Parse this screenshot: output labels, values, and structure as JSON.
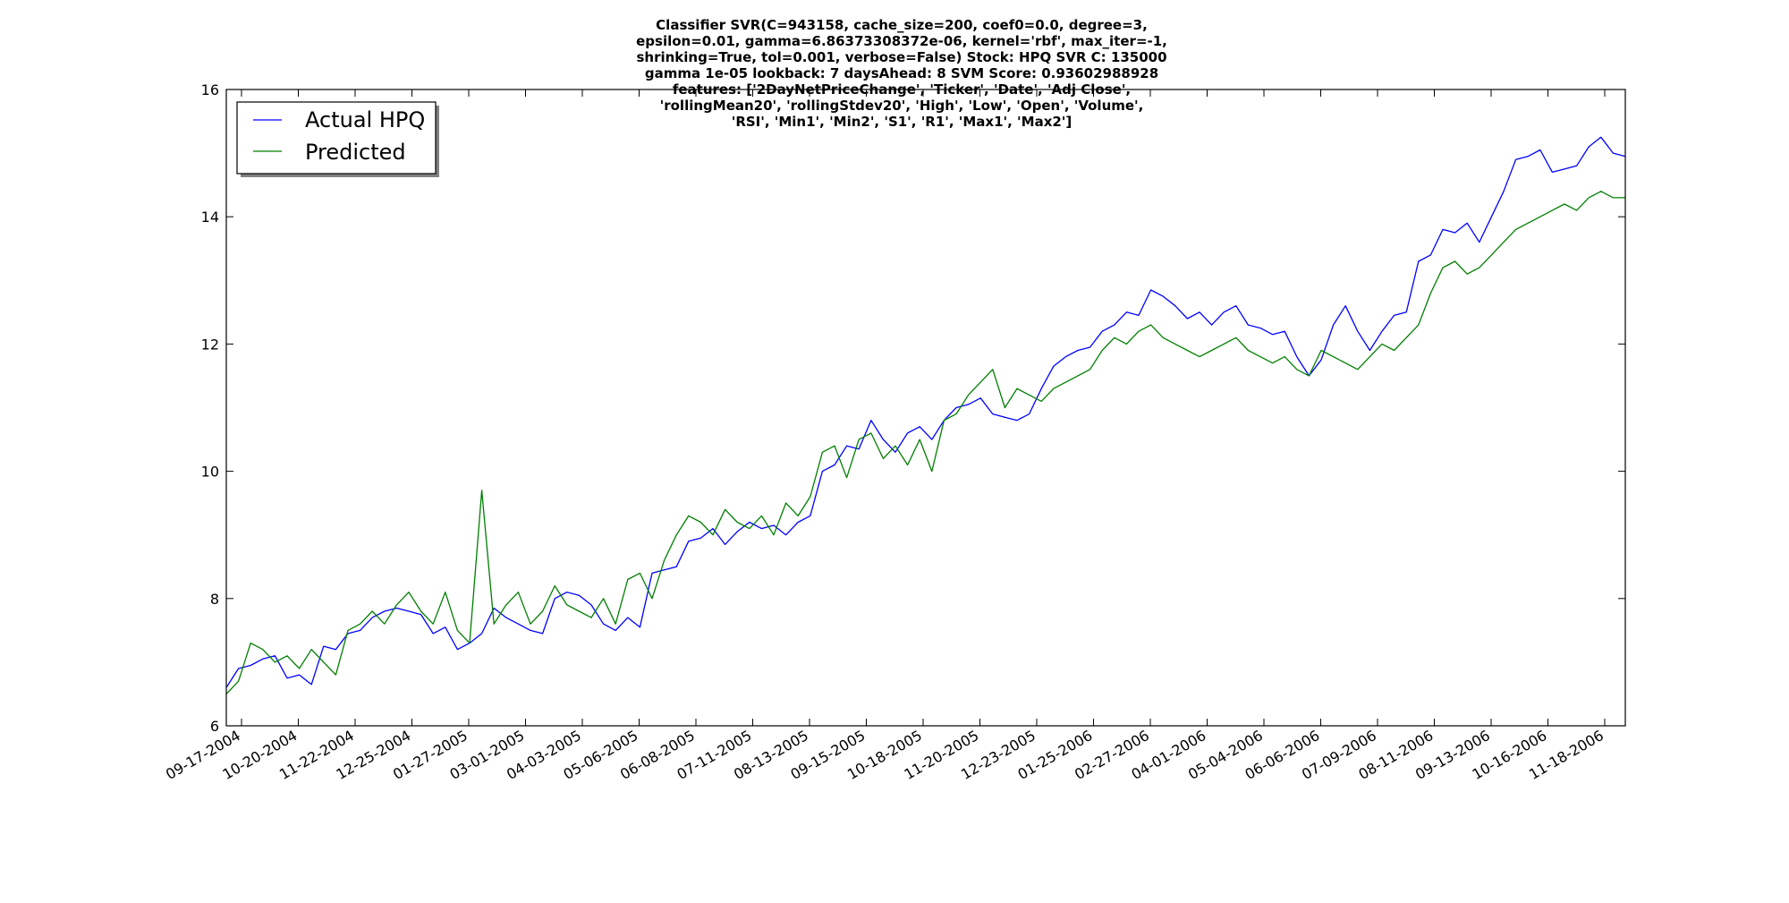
{
  "chart_data": {
    "type": "line",
    "title_lines": [
      "Classifier SVR(C=943158, cache_size=200, coef0=0.0, degree=3,",
      "epsilon=0.01,   gamma=6.86373308372e-06, kernel='rbf', max_iter=-1,",
      "shrinking=True,   tol=0.001, verbose=False) Stock: HPQ SVR C: 135000",
      "gamma 1e-05 lookback: 7 daysAhead: 8 SVM Score: 0.93602988928",
      "features: ['2DayNetPriceChange', 'Ticker', 'Date', 'Adj Close',",
      "'rollingMean20', 'rollingStdev20', 'High', 'Low', 'Open', 'Volume',",
      "'RSI', 'Min1', 'Min2', 'S1', 'R1', 'Max1', 'Max2']"
    ],
    "xlabel": "",
    "ylabel": "",
    "ylim": [
      6,
      16
    ],
    "yticks": [
      6,
      8,
      10,
      12,
      14,
      16
    ],
    "xticks": [
      "09-17-2004",
      "10-20-2004",
      "11-22-2004",
      "12-25-2004",
      "01-27-2005",
      "03-01-2005",
      "04-03-2005",
      "05-06-2005",
      "06-08-2005",
      "07-11-2005",
      "08-13-2005",
      "09-15-2005",
      "10-18-2005",
      "11-20-2005",
      "12-23-2005",
      "01-25-2006",
      "02-27-2006",
      "04-01-2006",
      "05-04-2006",
      "06-06-2006",
      "07-09-2006",
      "08-11-2006",
      "09-13-2006",
      "10-16-2006",
      "11-18-2006"
    ],
    "legend_position": "top-left",
    "grid": false,
    "x_days_per_tick": 33,
    "series": [
      {
        "name": "Actual HPQ",
        "color": "#0000ff",
        "values": [
          6.6,
          6.9,
          6.95,
          7.05,
          7.1,
          6.75,
          6.8,
          6.65,
          7.25,
          7.2,
          7.45,
          7.5,
          7.7,
          7.8,
          7.85,
          7.8,
          7.75,
          7.45,
          7.55,
          7.2,
          7.3,
          7.45,
          7.85,
          7.7,
          7.6,
          7.5,
          7.45,
          8.0,
          8.1,
          8.05,
          7.9,
          7.6,
          7.5,
          7.7,
          7.55,
          8.4,
          8.45,
          8.5,
          8.9,
          8.95,
          9.1,
          8.85,
          9.05,
          9.2,
          9.1,
          9.15,
          9.0,
          9.2,
          9.3,
          10.0,
          10.1,
          10.4,
          10.35,
          10.8,
          10.5,
          10.3,
          10.6,
          10.7,
          10.5,
          10.8,
          11.0,
          11.05,
          11.15,
          10.9,
          10.85,
          10.8,
          10.9,
          11.3,
          11.65,
          11.8,
          11.9,
          11.95,
          12.2,
          12.3,
          12.5,
          12.45,
          12.85,
          12.75,
          12.6,
          12.4,
          12.5,
          12.3,
          12.5,
          12.6,
          12.3,
          12.25,
          12.15,
          12.2,
          11.8,
          11.5,
          11.75,
          12.3,
          12.6,
          12.2,
          11.9,
          12.2,
          12.45,
          12.5,
          13.3,
          13.4,
          13.8,
          13.75,
          13.9,
          13.6,
          14.0,
          14.4,
          14.9,
          14.95,
          15.05,
          14.7,
          14.75,
          14.8,
          15.1,
          15.25,
          15.0,
          14.95
        ]
      },
      {
        "name": "Predicted",
        "color": "#007f00",
        "values": [
          6.5,
          6.7,
          7.3,
          7.2,
          7.0,
          7.1,
          6.9,
          7.2,
          7.0,
          6.8,
          7.5,
          7.6,
          7.8,
          7.6,
          7.9,
          8.1,
          7.8,
          7.6,
          8.1,
          7.5,
          7.3,
          9.7,
          7.6,
          7.9,
          8.1,
          7.6,
          7.8,
          8.2,
          7.9,
          7.8,
          7.7,
          8.0,
          7.6,
          8.3,
          8.4,
          8.0,
          8.6,
          9.0,
          9.3,
          9.2,
          9.0,
          9.4,
          9.2,
          9.1,
          9.3,
          9.0,
          9.5,
          9.3,
          9.6,
          10.3,
          10.4,
          9.9,
          10.5,
          10.6,
          10.2,
          10.4,
          10.1,
          10.5,
          10.0,
          10.8,
          10.9,
          11.2,
          11.4,
          11.6,
          11.0,
          11.3,
          11.2,
          11.1,
          11.3,
          11.4,
          11.5,
          11.6,
          11.9,
          12.1,
          12.0,
          12.2,
          12.3,
          12.1,
          12.0,
          11.9,
          11.8,
          11.9,
          12.0,
          12.1,
          11.9,
          11.8,
          11.7,
          11.8,
          11.6,
          11.5,
          11.9,
          11.8,
          11.7,
          11.6,
          11.8,
          12.0,
          11.9,
          12.1,
          12.3,
          12.8,
          13.2,
          13.3,
          13.1,
          13.2,
          13.4,
          13.6,
          13.8,
          13.9,
          14.0,
          14.1,
          14.2,
          14.1,
          14.3,
          14.4,
          14.3,
          14.3
        ]
      }
    ]
  }
}
